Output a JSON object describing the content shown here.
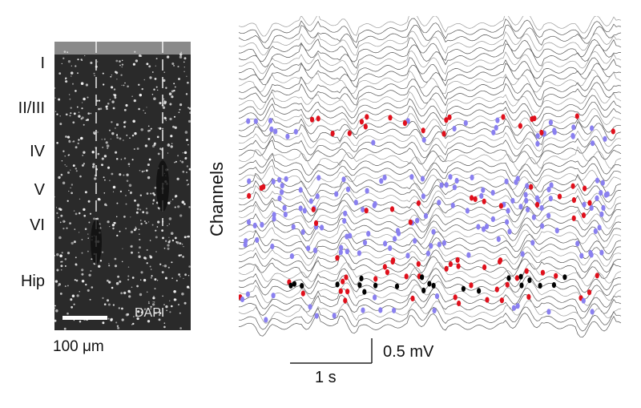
{
  "layers": [
    "I",
    "II/III",
    "IV",
    "V",
    "VI",
    "Hip"
  ],
  "stain": "DAPI",
  "scale_bar_label": "100 μm",
  "y_axis_label": "Channels",
  "voltage_scale": "0.5 mV",
  "time_scale": "1 s",
  "colors": {
    "trace_dark": "#555555",
    "trace_light": "#9a9a9a",
    "marker_red": "#e0101c",
    "marker_blue": "#8a80f0",
    "marker_black": "#000000",
    "tissue": "#2a2a2a"
  },
  "channel_count": 48
}
